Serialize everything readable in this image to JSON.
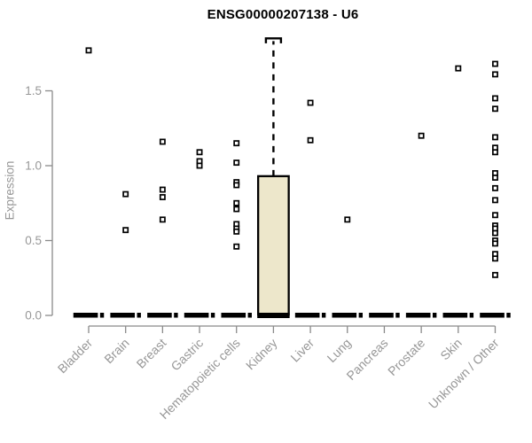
{
  "chart_data": {
    "type": "box",
    "title": "ENSG00000207138 - U6",
    "ylabel": "Expression",
    "xlabel": "",
    "ylim": [
      0,
      1.85
    ],
    "y_ticks": [
      0.0,
      0.5,
      1.0,
      1.5
    ],
    "grid": false,
    "legend": "none",
    "colors": {
      "box_fill": "#EDE7CB",
      "box_stroke": "#000000",
      "median": "#000000",
      "outlier_stroke": "#000000",
      "outlier_fill": "#ffffff",
      "axis_line": "#8a8a8a",
      "tick_label": "#979797",
      "title": "#000000",
      "background": "#ffffff"
    },
    "categories": [
      "Bladder",
      "Brain",
      "Breast",
      "Gastric",
      "Hematopoietic cells",
      "Kidney",
      "Liver",
      "Lung",
      "Pancreas",
      "Prostate",
      "Skin",
      "Unknown / Other"
    ],
    "boxes": [
      {
        "category": "Bladder",
        "q1": 0,
        "median": 0,
        "q3": 0,
        "whisker_low": 0,
        "whisker_high": 0,
        "outliers": [
          1.77
        ]
      },
      {
        "category": "Brain",
        "q1": 0,
        "median": 0,
        "q3": 0,
        "whisker_low": 0,
        "whisker_high": 0,
        "outliers": [
          0.81,
          0.57
        ]
      },
      {
        "category": "Breast",
        "q1": 0,
        "median": 0,
        "q3": 0,
        "whisker_low": 0,
        "whisker_high": 0,
        "outliers": [
          1.16,
          0.84,
          0.79,
          0.64
        ]
      },
      {
        "category": "Gastric",
        "q1": 0,
        "median": 0,
        "q3": 0,
        "whisker_low": 0,
        "whisker_high": 0,
        "outliers": [
          1.09,
          1.03,
          1.0
        ]
      },
      {
        "category": "Hematopoietic cells",
        "q1": 0,
        "median": 0,
        "q3": 0,
        "whisker_low": 0,
        "whisker_high": 0,
        "outliers": [
          1.15,
          1.02,
          0.89,
          0.87,
          0.75,
          0.71,
          0.61,
          0.58,
          0.56,
          0.46
        ]
      },
      {
        "category": "Kidney",
        "q1": 0,
        "median": 0,
        "q3": 0.93,
        "whisker_low": 0,
        "whisker_high": 1.85,
        "outliers": []
      },
      {
        "category": "Liver",
        "q1": 0,
        "median": 0,
        "q3": 0,
        "whisker_low": 0,
        "whisker_high": 0,
        "outliers": [
          1.42,
          1.17
        ]
      },
      {
        "category": "Lung",
        "q1": 0,
        "median": 0,
        "q3": 0,
        "whisker_low": 0,
        "whisker_high": 0,
        "outliers": [
          0.64
        ]
      },
      {
        "category": "Pancreas",
        "q1": 0,
        "median": 0,
        "q3": 0,
        "whisker_low": 0,
        "whisker_high": 0,
        "outliers": []
      },
      {
        "category": "Prostate",
        "q1": 0,
        "median": 0,
        "q3": 0,
        "whisker_low": 0,
        "whisker_high": 0,
        "outliers": [
          1.2
        ]
      },
      {
        "category": "Skin",
        "q1": 0,
        "median": 0,
        "q3": 0,
        "whisker_low": 0,
        "whisker_high": 0,
        "outliers": [
          1.65
        ]
      },
      {
        "category": "Unknown / Other",
        "q1": 0,
        "median": 0,
        "q3": 0,
        "whisker_low": 0,
        "whisker_high": 0,
        "outliers": [
          1.68,
          1.61,
          1.45,
          1.38,
          1.19,
          1.12,
          1.09,
          0.95,
          0.92,
          0.85,
          0.77,
          0.67,
          0.6,
          0.58,
          0.55,
          0.5,
          0.48,
          0.41,
          0.38,
          0.27
        ]
      }
    ]
  }
}
